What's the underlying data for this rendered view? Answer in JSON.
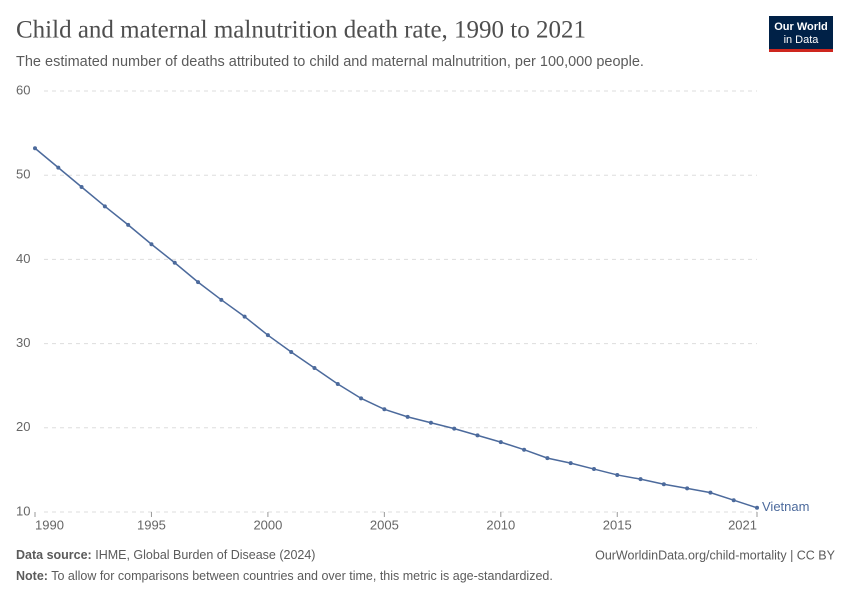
{
  "chart_data": {
    "type": "line",
    "title": "Child and maternal malnutrition death rate, 1990 to 2021",
    "subtitle": "The estimated number of deaths attributed to child and maternal malnutrition, per 100,000 people.",
    "logo": [
      "Our World",
      "in Data"
    ],
    "x": [
      1990,
      1991,
      1992,
      1993,
      1994,
      1995,
      1996,
      1997,
      1998,
      1999,
      2000,
      2001,
      2002,
      2003,
      2004,
      2005,
      2006,
      2007,
      2008,
      2009,
      2010,
      2011,
      2012,
      2013,
      2014,
      2015,
      2016,
      2017,
      2018,
      2019,
      2020,
      2021
    ],
    "series": [
      {
        "name": "Vietnam",
        "color": "#4c6a9c",
        "values": [
          53.2,
          50.9,
          48.6,
          46.3,
          44.1,
          41.8,
          39.6,
          37.3,
          35.2,
          33.2,
          31.0,
          29.0,
          27.1,
          25.2,
          23.5,
          22.2,
          21.3,
          20.6,
          19.9,
          19.1,
          18.3,
          17.4,
          16.4,
          15.8,
          15.1,
          14.4,
          13.9,
          13.3,
          12.8,
          12.3,
          11.4,
          10.5
        ]
      }
    ],
    "xlim": [
      1990,
      2021
    ],
    "xticks": [
      1990,
      1995,
      2000,
      2005,
      2010,
      2015,
      2021
    ],
    "ylim": [
      10,
      60
    ],
    "yticks": [
      10,
      20,
      30,
      40,
      50,
      60
    ],
    "grid": true,
    "source_label": "Data source:",
    "source": "IHME, Global Burden of Disease (2024)",
    "url": "OurWorldinData.org/child-mortality | CC BY",
    "note_label": "Note:",
    "note": "To allow for comparisons between countries and over time, this metric is age-standardized."
  }
}
